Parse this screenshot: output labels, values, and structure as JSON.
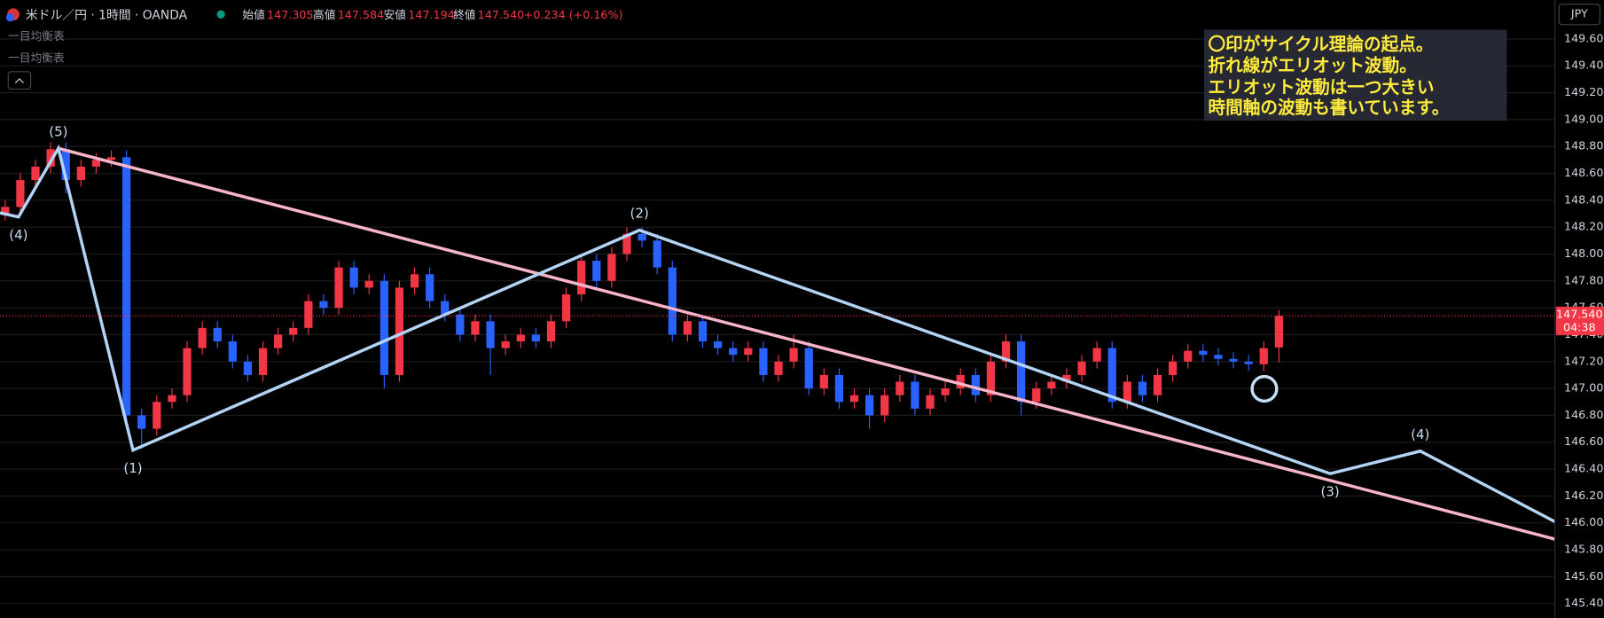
{
  "header": {
    "symbol": "米ドル／円 · 1時間 · OANDA",
    "open_label": "始値",
    "open": "147.305",
    "high_label": "高値",
    "high": "147.584",
    "low_label": "安値",
    "low": "147.194",
    "close_label": "終値",
    "close": "147.540",
    "change": "+0.234 (+0.16%)",
    "indicators": [
      "一目均衡表",
      "一目均衡表"
    ],
    "currency": "JPY"
  },
  "note": [
    "〇印がサイクル理論の起点。",
    "折れ線がエリオット波動。",
    "エリオット波動は一つ大きい",
    "時間軸の波動も書いています。"
  ],
  "chart_data": {
    "type": "candlestick",
    "up_color": "#f23645",
    "down_color": "#2962ff",
    "categories": [
      null,
      null,
      null,
      null,
      null,
      null,
      null,
      null,
      null,
      null,
      null,
      null,
      null,
      null,
      null,
      null,
      null,
      null,
      null,
      null,
      null,
      null,
      null,
      null,
      null,
      null,
      null,
      null,
      null,
      null,
      null,
      null,
      null,
      null,
      null,
      null,
      null,
      null,
      null,
      null,
      null,
      null,
      null,
      null,
      null,
      null,
      null,
      null,
      null,
      null,
      null,
      null,
      null,
      null,
      null,
      null,
      null,
      null,
      null,
      null,
      null,
      null,
      null,
      null,
      null,
      null,
      null,
      null,
      null,
      null,
      null,
      null,
      null,
      null,
      null,
      null,
      null,
      null,
      null,
      null,
      null,
      null,
      null,
      null,
      null
    ],
    "open": [
      148.3,
      148.35,
      148.55,
      148.65,
      148.78,
      148.55,
      148.65,
      148.7,
      148.72,
      146.8,
      146.7,
      146.9,
      146.95,
      147.3,
      147.45,
      147.35,
      147.2,
      147.1,
      147.3,
      147.4,
      147.45,
      147.65,
      147.6,
      147.9,
      147.75,
      147.8,
      147.1,
      147.75,
      147.85,
      147.65,
      147.55,
      147.4,
      147.5,
      147.3,
      147.35,
      147.4,
      147.35,
      147.5,
      147.7,
      147.95,
      147.8,
      148.0,
      148.15,
      148.1,
      147.9,
      147.4,
      147.5,
      147.35,
      147.3,
      147.25,
      147.3,
      147.1,
      147.2,
      147.3,
      147.0,
      147.1,
      146.9,
      146.95,
      146.8,
      146.95,
      147.05,
      146.85,
      146.95,
      147.0,
      147.1,
      146.95,
      147.2,
      147.35,
      146.9,
      147.0,
      147.05,
      147.1,
      147.2,
      147.3,
      146.9,
      147.05,
      146.95,
      147.1,
      147.2,
      147.28,
      147.25,
      147.22,
      147.2,
      147.18,
      147.305
    ],
    "high": [
      148.4,
      148.6,
      148.7,
      148.83,
      148.83,
      148.7,
      148.75,
      148.77,
      148.77,
      146.85,
      146.95,
      147.0,
      147.35,
      147.5,
      147.5,
      147.4,
      147.25,
      147.35,
      147.45,
      147.5,
      147.7,
      147.7,
      147.95,
      147.95,
      147.85,
      147.85,
      147.8,
      147.9,
      147.9,
      147.7,
      147.6,
      147.55,
      147.55,
      147.4,
      147.45,
      147.45,
      147.55,
      147.75,
      148.0,
      148.0,
      148.05,
      148.2,
      148.2,
      148.15,
      147.95,
      147.55,
      147.55,
      147.4,
      147.35,
      147.35,
      147.35,
      147.25,
      147.4,
      147.35,
      147.15,
      147.15,
      147.0,
      147.0,
      147.0,
      147.1,
      147.1,
      147.0,
      147.05,
      147.15,
      147.15,
      147.25,
      147.4,
      147.4,
      147.05,
      147.1,
      147.15,
      147.25,
      147.35,
      147.35,
      147.1,
      147.1,
      147.15,
      147.25,
      147.33,
      147.33,
      147.3,
      147.27,
      147.25,
      147.35,
      147.584
    ],
    "low": [
      148.25,
      148.3,
      148.5,
      148.6,
      148.45,
      148.5,
      148.6,
      148.65,
      146.75,
      146.55,
      146.65,
      146.85,
      146.9,
      147.25,
      147.3,
      147.15,
      147.05,
      147.05,
      147.25,
      147.35,
      147.4,
      147.55,
      147.55,
      147.7,
      147.7,
      147.0,
      147.05,
      147.7,
      147.6,
      147.5,
      147.35,
      147.35,
      147.1,
      147.25,
      147.3,
      147.3,
      147.3,
      147.45,
      147.65,
      147.75,
      147.75,
      147.95,
      148.05,
      147.85,
      147.35,
      147.35,
      147.3,
      147.25,
      147.2,
      147.2,
      147.05,
      147.05,
      147.15,
      146.95,
      146.95,
      146.85,
      146.85,
      146.7,
      146.75,
      146.9,
      146.8,
      146.8,
      146.9,
      146.95,
      146.9,
      146.9,
      147.15,
      146.8,
      146.85,
      146.95,
      147.0,
      147.05,
      147.15,
      146.85,
      146.85,
      146.9,
      146.9,
      147.05,
      147.15,
      147.2,
      147.17,
      147.15,
      147.13,
      147.13,
      147.194
    ],
    "close": [
      148.35,
      148.55,
      148.65,
      148.78,
      148.55,
      148.65,
      148.7,
      148.72,
      146.8,
      146.7,
      146.9,
      146.95,
      147.3,
      147.45,
      147.35,
      147.2,
      147.1,
      147.3,
      147.4,
      147.45,
      147.65,
      147.6,
      147.9,
      147.75,
      147.8,
      147.1,
      147.75,
      147.85,
      147.65,
      147.55,
      147.4,
      147.5,
      147.3,
      147.35,
      147.4,
      147.35,
      147.5,
      147.7,
      147.95,
      147.8,
      148.0,
      148.15,
      148.1,
      147.9,
      147.4,
      147.5,
      147.35,
      147.3,
      147.25,
      147.3,
      147.1,
      147.2,
      147.3,
      147.0,
      147.1,
      146.9,
      146.95,
      146.8,
      146.95,
      147.05,
      146.85,
      146.95,
      147.0,
      147.1,
      146.95,
      147.2,
      147.35,
      146.9,
      147.0,
      147.05,
      147.1,
      147.2,
      147.3,
      146.9,
      147.05,
      146.95,
      147.1,
      147.2,
      147.28,
      147.25,
      147.22,
      147.2,
      147.18,
      147.3,
      147.54
    ],
    "last_price_label": "147.540",
    "countdown": "04:38",
    "xlim": [
      -0.34,
      102.2
    ],
    "ylim": [
      145.293,
      149.889
    ],
    "yticks": [
      {
        "value": 145.4,
        "label": "145.400"
      },
      {
        "value": 145.6,
        "label": "145.600"
      },
      {
        "value": 145.8,
        "label": "145.800"
      },
      {
        "value": 146.0,
        "label": "146.000"
      },
      {
        "value": 146.2,
        "label": "146.200"
      },
      {
        "value": 146.4,
        "label": "146.400"
      },
      {
        "value": 146.6,
        "label": "146.600"
      },
      {
        "value": 146.8,
        "label": "146.800"
      },
      {
        "value": 147.0,
        "label": "147.000"
      },
      {
        "value": 147.2,
        "label": "147.200"
      },
      {
        "value": 147.4,
        "label": "147.400"
      },
      {
        "value": 147.6,
        "label": "147.600"
      },
      {
        "value": 147.8,
        "label": "147.800"
      },
      {
        "value": 148.0,
        "label": "148.000"
      },
      {
        "value": 148.2,
        "label": "148.200"
      },
      {
        "value": 148.4,
        "label": "148.400"
      },
      {
        "value": 148.6,
        "label": "148.600"
      },
      {
        "value": 148.8,
        "label": "148.800"
      },
      {
        "value": 149.0,
        "label": "149.000"
      },
      {
        "value": 149.2,
        "label": "149.200"
      },
      {
        "value": 149.4,
        "label": "149.400"
      },
      {
        "value": 149.6,
        "label": "149.600"
      }
    ],
    "grid": true,
    "wave": {
      "color": "#b3d4f5",
      "x": [
        -0.34,
        0.88,
        3.51,
        8.43,
        41.83,
        87.38,
        93.32,
        102.2
      ],
      "y": [
        148.306,
        148.276,
        148.786,
        146.541,
        148.177,
        146.366,
        146.534,
        146.009
      ],
      "labels": [
        null,
        "(4)",
        "(5)",
        "(1)",
        "(2)",
        "(3)",
        "(4)",
        null
      ]
    },
    "trend": {
      "color": "#f8b4c8",
      "x": [
        3.51,
        102.2
      ],
      "y": [
        148.786,
        145.879
      ]
    }
  }
}
